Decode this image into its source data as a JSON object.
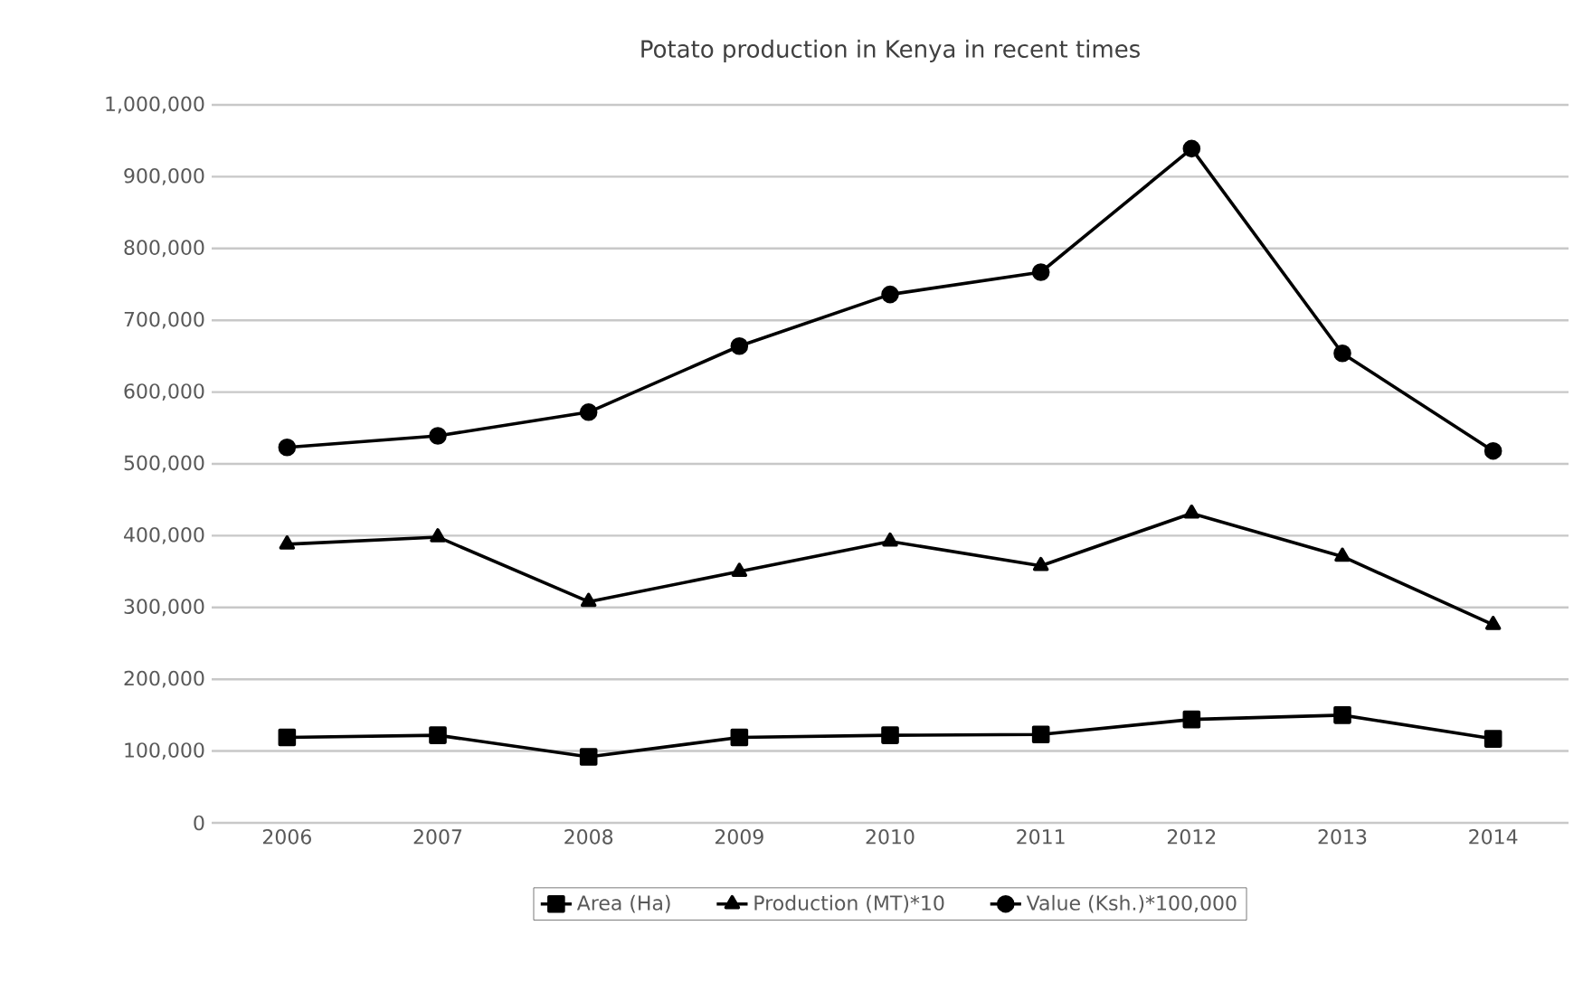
{
  "chart_data": {
    "type": "line",
    "title": "Potato production in Kenya in recent times",
    "categories": [
      "2006",
      "2007",
      "2008",
      "2009",
      "2010",
      "2011",
      "2012",
      "2013",
      "2014"
    ],
    "series": [
      {
        "name": "Area  (Ha)",
        "color": "#000000",
        "marker": "square",
        "values": [
          119000,
          122000,
          92000,
          119000,
          122000,
          123000,
          144000,
          150000,
          117000
        ]
      },
      {
        "name": "Production (MT)*10",
        "color": "#000000",
        "marker": "triangle",
        "values": [
          388000,
          398000,
          308000,
          350000,
          392000,
          358000,
          431000,
          371000,
          276000
        ]
      },
      {
        "name": "Value (Ksh.)*100,000",
        "color": "#000000",
        "marker": "circle",
        "values": [
          523000,
          539000,
          572000,
          664000,
          736000,
          767000,
          939000,
          654000,
          518000
        ]
      }
    ],
    "ylim": [
      0,
      1000000
    ],
    "yticks": [
      0,
      {
        "value": 100000,
        "label": "100,000"
      },
      {
        "value": 200000,
        "label": "200,000"
      },
      {
        "value": 300000,
        "label": "300,000"
      },
      {
        "value": 400000,
        "label": "400,000"
      },
      {
        "value": 500000,
        "label": "500,000"
      },
      {
        "value": 600000,
        "label": "600,000"
      },
      {
        "value": 700000,
        "label": "700,000"
      },
      {
        "value": 800000,
        "label": "800,000"
      },
      {
        "value": 900000,
        "label": "900,000"
      },
      {
        "value": 1000000,
        "label": "1,000,000"
      }
    ],
    "grid": "y",
    "legend": "bottom",
    "line_style": "solid"
  }
}
